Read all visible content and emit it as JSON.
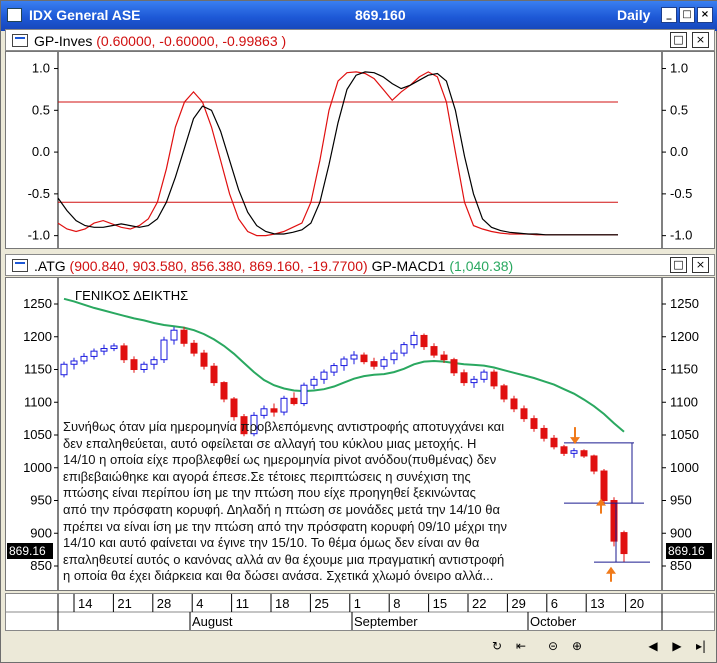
{
  "window": {
    "title": "IDX General ASE",
    "value": "869.160",
    "period": "Daily",
    "btn_min": "_",
    "btn_max": "□",
    "btn_close": "×"
  },
  "indicator_panel": {
    "title_prefix": "GP-Inves",
    "title_values": "(0.60000, -0.60000, -0.99863 )",
    "y_ticks": [
      "1.0",
      "0.5",
      "0.0",
      "-0.5",
      "-1.0"
    ]
  },
  "price_panel": {
    "title_prefix": ".ATG",
    "title_values": "(900.840, 903.580, 856.380, 869.160, -19.7700)",
    "title_series2": "GP-MACD1",
    "title_series2_value": "(1,040.38)",
    "chart_label": "ΓΕΝΙΚΟΣ ΔΕΙΚΤΗΣ",
    "y_ticks": [
      "1250",
      "1200",
      "1150",
      "1100",
      "1050",
      "1000",
      "950",
      "900",
      "850"
    ],
    "last_price_tag": "869.16",
    "last_price_tag_right": "869.16"
  },
  "annotation_lines": [
    "Συνήθως όταν μία ημερομηνία προβλεπόμενης αντιστροφής αποτυγχάνει και",
    "δεν επαληθεύεται, αυτό οφείλεται σε αλλαγή του κύκλου μιας μετοχής. Η",
    "14/10 η οποία είχε προβλεφθεί ως ημερομηνία pivot ανόδου(πυθμένας) δεν",
    "επιβεβαιώθηκε και αγορά έπεσε.Σε τέτοιες περιπτώσεις η  συνέχιση της",
    "πτώσης είναι περίπου ίση με   την  πτώση που είχε προηγηθεί ξεκινώντας",
    "από την πρόσφατη κορυφή. Δηλαδή η πτώση σε μονάδες μετά την 14/10 θα",
    "πρέπει να είναι ίση με την πτώση από την πρόσφατη κορυφή 09/10 μέχρι την",
    "14/10 και αυτό φαίνεται να έγινε την 15/10. Το θέμα όμως δεν είναι αν θα",
    "επαληθευτεί αυτός ο κανόνας αλλά αν θα έχουμε μια πραγματική αντιστροφή",
    "η οποία θα έχει διάρκεια και θα δώσει ανάσα.   Σχετικά χλωμό όνειρο αλλά..."
  ],
  "x_axis": {
    "days": [
      "14",
      "21",
      "28",
      "4",
      "11",
      "18",
      "25",
      "1",
      "8",
      "15",
      "22",
      "29",
      "6",
      "13",
      "20"
    ],
    "months": [
      "August",
      "September",
      "October"
    ]
  },
  "colors": {
    "up_candle": "#1a1adf",
    "down_candle": "#e01010",
    "ma_line": "#2aa860",
    "oscillator_fast": "#e01010",
    "oscillator_slow": "#000000",
    "threshold": "#d01010",
    "arrow": "#f07a1a",
    "projection": "#1a1a8f"
  },
  "status_icons": [
    "refresh-icon",
    "rewind-icon",
    "zoom-out-icon",
    "zoom-in-icon",
    "scroll-left-icon",
    "scroll-right-icon",
    "step-right-icon"
  ],
  "chart_data": [
    {
      "type": "line",
      "title": "GP-Inves",
      "ylim": [
        -1.1,
        1.15
      ],
      "y_ticks": [
        1.0,
        0.5,
        0.0,
        -0.5,
        -1.0
      ],
      "thresholds": [
        0.6,
        -0.6
      ],
      "series": [
        {
          "values": [
            -0.85,
            -0.92,
            -0.95,
            -0.92,
            -0.85,
            -0.82,
            -0.86,
            -0.9,
            -0.92,
            -0.88,
            -0.8,
            -0.6,
            -0.2,
            0.3,
            0.6,
            0.72,
            0.6,
            0.3,
            -0.1,
            -0.5,
            -0.8,
            -0.95,
            -1.0,
            -1.0,
            -0.98,
            -0.95,
            -0.9,
            -0.85,
            -0.6,
            -0.1,
            0.5,
            0.85,
            0.95,
            0.96,
            0.94,
            0.88,
            0.75,
            0.62,
            0.72,
            0.8,
            0.9,
            0.96,
            0.9,
            0.6,
            0.0,
            -0.6,
            -0.88,
            -0.92,
            -0.95,
            -0.97,
            -0.98,
            -0.98,
            -0.98,
            -0.99,
            -0.99,
            -0.99,
            -0.99,
            -0.99,
            -0.99,
            -0.99,
            -0.99,
            -0.99,
            -0.99
          ]
        },
        {
          "values": [
            -0.55,
            -0.7,
            -0.82,
            -0.88,
            -0.9,
            -0.9,
            -0.88,
            -0.86,
            -0.88,
            -0.9,
            -0.88,
            -0.8,
            -0.6,
            -0.3,
            0.05,
            0.4,
            0.55,
            0.5,
            0.25,
            -0.1,
            -0.45,
            -0.72,
            -0.88,
            -0.95,
            -0.98,
            -0.98,
            -0.96,
            -0.93,
            -0.85,
            -0.6,
            -0.15,
            0.35,
            0.75,
            0.92,
            0.96,
            0.95,
            0.9,
            0.82,
            0.76,
            0.8,
            0.86,
            0.92,
            0.94,
            0.85,
            0.5,
            -0.05,
            -0.5,
            -0.8,
            -0.9,
            -0.94,
            -0.96,
            -0.97,
            -0.98,
            -0.98,
            -0.99,
            -0.99,
            -0.99,
            -0.99,
            -0.99,
            -0.99,
            -0.99,
            -0.99,
            -0.99
          ]
        }
      ]
    },
    {
      "type": "candlestick",
      "title": ".ATG",
      "ylim": [
        820,
        1280
      ],
      "y_ticks": [
        1250,
        1200,
        1150,
        1100,
        1050,
        1000,
        950,
        900,
        850
      ],
      "candles": [
        [
          1142,
          1162,
          1138,
          1158
        ],
        [
          1158,
          1168,
          1150,
          1163
        ],
        [
          1163,
          1175,
          1158,
          1170
        ],
        [
          1170,
          1182,
          1165,
          1178
        ],
        [
          1178,
          1188,
          1172,
          1182
        ],
        [
          1182,
          1190,
          1178,
          1186
        ],
        [
          1186,
          1190,
          1160,
          1165
        ],
        [
          1165,
          1170,
          1145,
          1150
        ],
        [
          1150,
          1162,
          1145,
          1158
        ],
        [
          1158,
          1170,
          1150,
          1165
        ],
        [
          1165,
          1200,
          1160,
          1195
        ],
        [
          1195,
          1215,
          1188,
          1210
        ],
        [
          1210,
          1215,
          1185,
          1190
        ],
        [
          1190,
          1195,
          1170,
          1175
        ],
        [
          1175,
          1180,
          1150,
          1155
        ],
        [
          1155,
          1160,
          1125,
          1130
        ],
        [
          1130,
          1132,
          1100,
          1105
        ],
        [
          1105,
          1108,
          1072,
          1078
        ],
        [
          1078,
          1082,
          1048,
          1052
        ],
        [
          1052,
          1085,
          1048,
          1080
        ],
        [
          1080,
          1095,
          1075,
          1090
        ],
        [
          1090,
          1098,
          1078,
          1085
        ],
        [
          1085,
          1110,
          1080,
          1106
        ],
        [
          1106,
          1115,
          1095,
          1098
        ],
        [
          1098,
          1130,
          1094,
          1126
        ],
        [
          1126,
          1140,
          1120,
          1135
        ],
        [
          1135,
          1150,
          1128,
          1146
        ],
        [
          1146,
          1160,
          1140,
          1156
        ],
        [
          1156,
          1170,
          1148,
          1166
        ],
        [
          1166,
          1178,
          1158,
          1172
        ],
        [
          1172,
          1176,
          1158,
          1162
        ],
        [
          1162,
          1168,
          1150,
          1155
        ],
        [
          1155,
          1170,
          1150,
          1165
        ],
        [
          1165,
          1180,
          1158,
          1175
        ],
        [
          1175,
          1192,
          1170,
          1188
        ],
        [
          1188,
          1208,
          1182,
          1202
        ],
        [
          1202,
          1205,
          1180,
          1185
        ],
        [
          1185,
          1190,
          1168,
          1172
        ],
        [
          1172,
          1178,
          1160,
          1165
        ],
        [
          1165,
          1168,
          1140,
          1145
        ],
        [
          1145,
          1150,
          1125,
          1130
        ],
        [
          1130,
          1140,
          1122,
          1135
        ],
        [
          1135,
          1150,
          1130,
          1146
        ],
        [
          1146,
          1150,
          1120,
          1125
        ],
        [
          1125,
          1128,
          1100,
          1105
        ],
        [
          1105,
          1110,
          1085,
          1090
        ],
        [
          1090,
          1095,
          1070,
          1075
        ],
        [
          1075,
          1080,
          1055,
          1060
        ],
        [
          1060,
          1065,
          1040,
          1045
        ],
        [
          1045,
          1050,
          1028,
          1032
        ],
        [
          1032,
          1035,
          1018,
          1022
        ],
        [
          1022,
          1030,
          1015,
          1026
        ],
        [
          1026,
          1028,
          1015,
          1018
        ],
        [
          1018,
          1020,
          990,
          995
        ],
        [
          995,
          998,
          945,
          950
        ],
        [
          950,
          955,
          880,
          888
        ],
        [
          901,
          904,
          856,
          869
        ]
      ],
      "moving_average": [
        1258,
        1254,
        1249,
        1244,
        1240,
        1236,
        1232,
        1228,
        1225,
        1221,
        1218,
        1216,
        1214,
        1210,
        1204,
        1196,
        1186,
        1174,
        1160,
        1146,
        1134,
        1126,
        1121,
        1118,
        1117,
        1118,
        1120,
        1124,
        1130,
        1136,
        1140,
        1142,
        1143,
        1146,
        1151,
        1158,
        1162,
        1163,
        1162,
        1160,
        1158,
        1157,
        1156,
        1153,
        1149,
        1145,
        1141,
        1137,
        1132,
        1127,
        1120,
        1113,
        1104,
        1094,
        1082,
        1068,
        1055
      ]
    }
  ]
}
